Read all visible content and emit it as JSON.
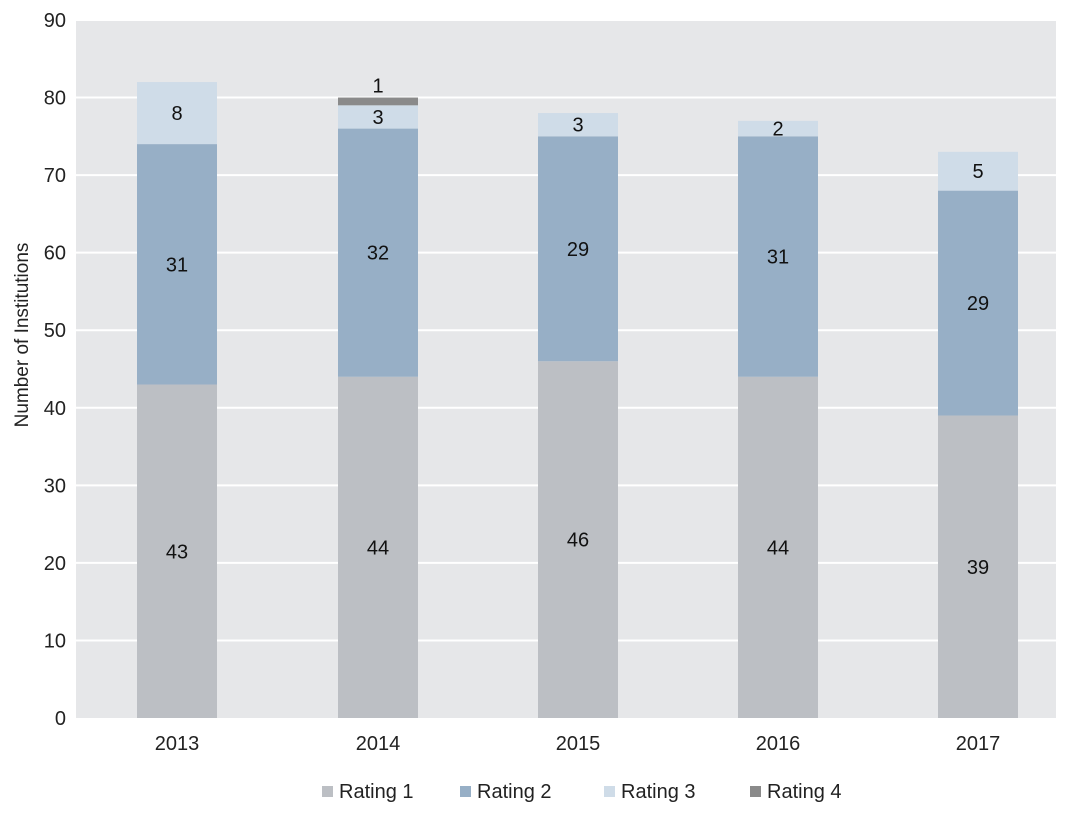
{
  "chart_data": {
    "type": "bar",
    "stacked": true,
    "categories": [
      "2013",
      "2014",
      "2015",
      "2016",
      "2017"
    ],
    "series": [
      {
        "name": "Rating 1",
        "color": "#bcbfc4",
        "values": [
          43,
          44,
          46,
          44,
          39
        ]
      },
      {
        "name": "Rating 2",
        "color": "#97afc6",
        "values": [
          31,
          32,
          29,
          31,
          29
        ]
      },
      {
        "name": "Rating 3",
        "color": "#cfdce8",
        "values": [
          8,
          3,
          3,
          2,
          5
        ]
      },
      {
        "name": "Rating 4",
        "color": "#8a8a8a",
        "values": [
          0,
          1,
          0,
          0,
          0
        ]
      }
    ],
    "data_labels": [
      [
        "43",
        "44",
        "46",
        "44",
        "39"
      ],
      [
        "31",
        "32",
        "29",
        "31",
        "29"
      ],
      [
        "8",
        "3",
        "3",
        "2",
        "5"
      ],
      [
        "",
        "1",
        "",
        "",
        ""
      ]
    ],
    "title": "",
    "xlabel": "",
    "ylabel": "Number of Institutions",
    "ylim": [
      0,
      90
    ],
    "yticks": [
      "0",
      "10",
      "20",
      "30",
      "40",
      "50",
      "60",
      "70",
      "80",
      "90"
    ],
    "grid": true,
    "legend_position": "bottom",
    "plot_background": "#e6e7e9"
  }
}
